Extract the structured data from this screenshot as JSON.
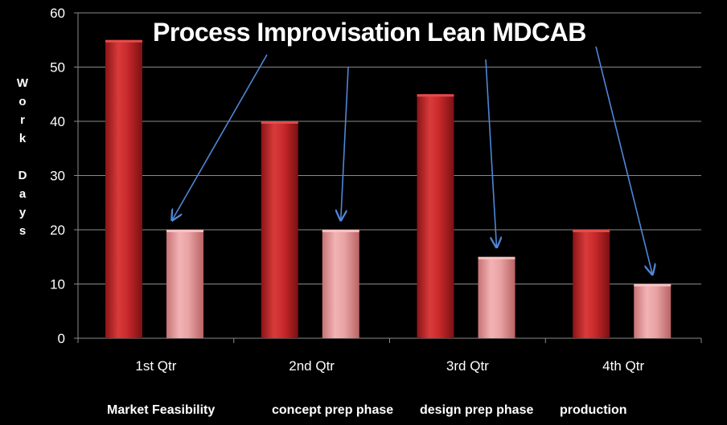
{
  "chart_data": {
    "type": "bar",
    "title": "Process Improvisation Lean MDCAB",
    "ylabel": "Work Days",
    "categories": [
      "1st Qtr",
      "2nd Qtr",
      "3rd Qtr",
      "4th Qtr"
    ],
    "series": [
      {
        "values": [
          55,
          40,
          45,
          20
        ],
        "color": "#c0282a"
      },
      {
        "values": [
          20,
          20,
          15,
          10
        ],
        "color": "#e89a9c"
      }
    ],
    "yticks": [
      0,
      10,
      20,
      30,
      40,
      50,
      60
    ],
    "ylim": [
      0,
      60
    ],
    "grid": true,
    "phase_labels": [
      "Market Feasibility",
      "concept prep phase",
      "design prep phase",
      "production"
    ],
    "arrow_color": "#4f86d8",
    "background": "#000000"
  }
}
